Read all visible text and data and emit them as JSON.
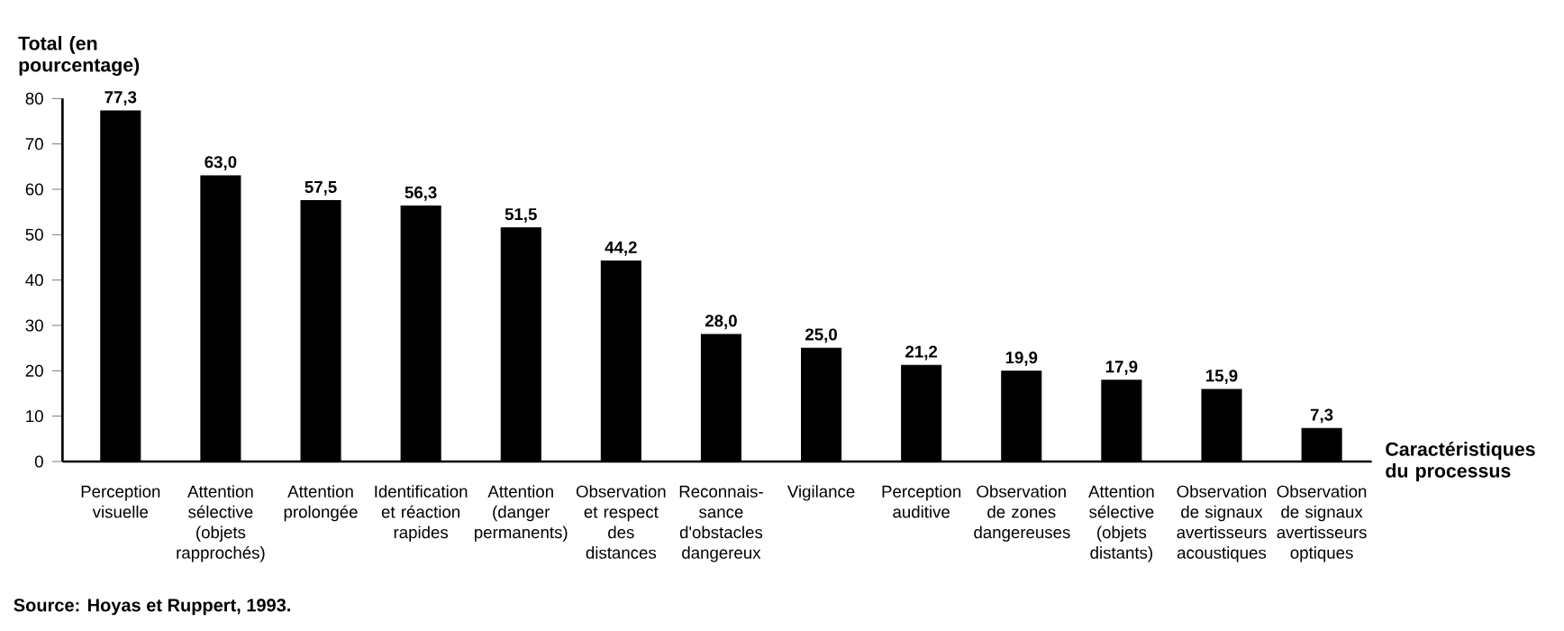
{
  "chart_data": {
    "type": "bar",
    "ylabel": "Total (en pourcentage)",
    "xlabel": "Caractéristiques du processus",
    "categories": [
      "Perception visuelle",
      "Attention sélective (objets rapprochés)",
      "Attention prolongée",
      "Identification et réaction rapides",
      "Attention (danger permanents)",
      "Observation et respect des distances",
      "Reconnais-sance d'obstacles dangereux",
      "Vigilance",
      "Perception auditive",
      "Observation de zones dangereuses",
      "Attention sélective (objets distants)",
      "Observation de signaux avertisseurs acoustiques",
      "Observation de signaux avertisseurs optiques"
    ],
    "values": [
      77.3,
      63.0,
      57.5,
      56.3,
      51.5,
      44.2,
      28.0,
      25.0,
      21.2,
      19.9,
      17.9,
      15.9,
      7.3
    ],
    "value_labels": [
      "77,3",
      "63,0",
      "57,5",
      "56,3",
      "51,5",
      "44,2",
      "28,0",
      "25,0",
      "21,2",
      "19,9",
      "17,9",
      "15,9",
      "7,3"
    ],
    "color": "#000000",
    "ylim": [
      0,
      80
    ],
    "yticks": [
      0,
      10,
      20,
      30,
      40,
      50,
      60,
      70,
      80
    ],
    "grid": false,
    "annotations": [
      "Source: Hoyas et Ruppert,  1993."
    ]
  }
}
